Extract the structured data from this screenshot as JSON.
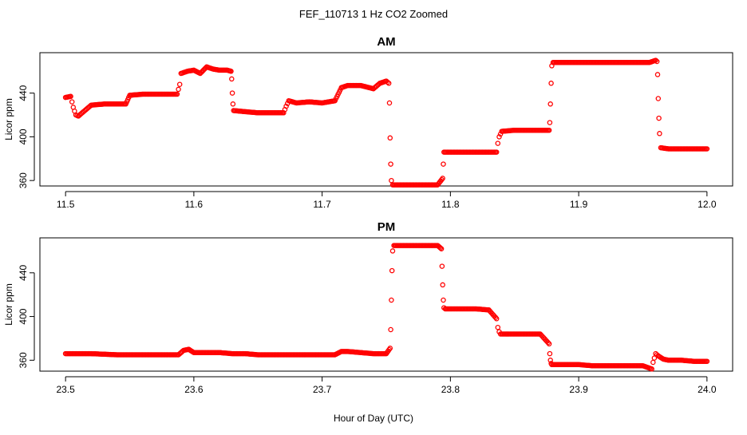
{
  "figure": {
    "title": "FEF_110713  1 Hz CO2 Zoomed",
    "xlabel": "Hour of Day (UTC)"
  },
  "chart_data": [
    {
      "type": "scatter",
      "title": "AM",
      "xlabel": "",
      "ylabel": "Licor ppm",
      "xlim": [
        11.48,
        12.02
      ],
      "ylim": [
        355,
        477
      ],
      "xticks": [
        11.5,
        11.6,
        11.7,
        11.8,
        11.9,
        12.0
      ],
      "xtick_labels": [
        "11.5",
        "11.6",
        "11.7",
        "11.8",
        "11.9",
        "12.0"
      ],
      "yticks": [
        360,
        400,
        440
      ],
      "ytick_labels": [
        "360",
        "400",
        "440"
      ],
      "grid": false,
      "series": [
        {
          "color": "#ff0000",
          "marker": "open-circle",
          "x": [
            11.5,
            11.504,
            11.506,
            11.508,
            11.51,
            11.515,
            11.52,
            11.53,
            11.54,
            11.547,
            11.55,
            11.56,
            11.57,
            11.58,
            11.587,
            11.589,
            11.59,
            11.595,
            11.6,
            11.605,
            11.61,
            11.615,
            11.62,
            11.626,
            11.629,
            11.6295,
            11.63,
            11.6305,
            11.631,
            11.64,
            11.65,
            11.66,
            11.67,
            11.672,
            11.674,
            11.68,
            11.69,
            11.7,
            11.71,
            11.715,
            11.72,
            11.73,
            11.74,
            11.745,
            11.75,
            11.752,
            11.7525,
            11.753,
            11.7535,
            11.754,
            11.755,
            11.76,
            11.77,
            11.78,
            11.79,
            11.794,
            11.7945,
            11.795,
            11.8,
            11.81,
            11.82,
            11.83,
            11.836,
            11.837,
            11.838,
            11.84,
            11.85,
            11.86,
            11.87,
            11.877,
            11.8775,
            11.878,
            11.8785,
            11.879,
            11.88,
            11.89,
            11.9,
            11.91,
            11.92,
            11.93,
            11.94,
            11.95,
            11.955,
            11.96,
            11.961,
            11.9615,
            11.962,
            11.9625,
            11.963,
            11.964,
            11.97,
            11.98,
            11.99,
            12.0
          ],
          "y": [
            436,
            437,
            427,
            420,
            419,
            424,
            429,
            430,
            430,
            430,
            438,
            439,
            439,
            439,
            439,
            448,
            458,
            460,
            461,
            458,
            464,
            462,
            461,
            461,
            460,
            453,
            440,
            430,
            424,
            423,
            422,
            422,
            422,
            428,
            433,
            431,
            432,
            431,
            433,
            445,
            447,
            447,
            444,
            449,
            451,
            449,
            431,
            399,
            375,
            360,
            356,
            356,
            356,
            356,
            356,
            362,
            375,
            386,
            386,
            386,
            386,
            386,
            386,
            394,
            400,
            405,
            406,
            406,
            406,
            406,
            413,
            430,
            449,
            465,
            468,
            468,
            468,
            468,
            468,
            468,
            468,
            468,
            468,
            470,
            469,
            457,
            435,
            417,
            403,
            390,
            389,
            389,
            389,
            389
          ]
        }
      ]
    },
    {
      "type": "scatter",
      "title": "PM",
      "xlabel": "",
      "ylabel": "Licor ppm",
      "xlim": [
        23.48,
        24.02
      ],
      "ylim": [
        350,
        472
      ],
      "xticks": [
        23.5,
        23.6,
        23.7,
        23.8,
        23.9,
        24.0
      ],
      "xtick_labels": [
        "23.5",
        "23.6",
        "23.7",
        "23.8",
        "23.9",
        "24.0"
      ],
      "yticks": [
        360,
        400,
        440
      ],
      "ytick_labels": [
        "360",
        "400",
        "440"
      ],
      "grid": false,
      "series": [
        {
          "color": "#ff0000",
          "marker": "open-circle",
          "x": [
            23.5,
            23.52,
            23.54,
            23.56,
            23.58,
            23.588,
            23.592,
            23.596,
            23.6,
            23.61,
            23.62,
            23.63,
            23.64,
            23.65,
            23.66,
            23.67,
            23.68,
            23.69,
            23.7,
            23.71,
            23.715,
            23.72,
            23.73,
            23.74,
            23.75,
            23.753,
            23.7535,
            23.754,
            23.7545,
            23.755,
            23.756,
            23.76,
            23.77,
            23.78,
            23.79,
            23.793,
            23.7935,
            23.794,
            23.7945,
            23.795,
            23.796,
            23.8,
            23.81,
            23.82,
            23.83,
            23.836,
            23.837,
            23.838,
            23.839,
            23.84,
            23.85,
            23.86,
            23.87,
            23.877,
            23.8775,
            23.878,
            23.8785,
            23.879,
            23.88,
            23.89,
            23.9,
            23.91,
            23.92,
            23.93,
            23.94,
            23.95,
            23.957,
            23.958,
            23.96,
            23.962,
            23.966,
            23.97,
            23.98,
            23.99,
            24.0
          ],
          "y": [
            366,
            366,
            365,
            365,
            365,
            365,
            369,
            370,
            367,
            367,
            367,
            366,
            366,
            365,
            365,
            365,
            365,
            365,
            365,
            365,
            368,
            368,
            367,
            366,
            366,
            371,
            388,
            415,
            442,
            460,
            465,
            465,
            465,
            465,
            465,
            462,
            446,
            429,
            415,
            408,
            407,
            407,
            407,
            407,
            406,
            398,
            390,
            386,
            384,
            384,
            384,
            384,
            384,
            375,
            366,
            360,
            357,
            356,
            356,
            356,
            356,
            355,
            355,
            355,
            355,
            355,
            352,
            358,
            366,
            364,
            361,
            360,
            360,
            359,
            359
          ]
        }
      ]
    }
  ]
}
